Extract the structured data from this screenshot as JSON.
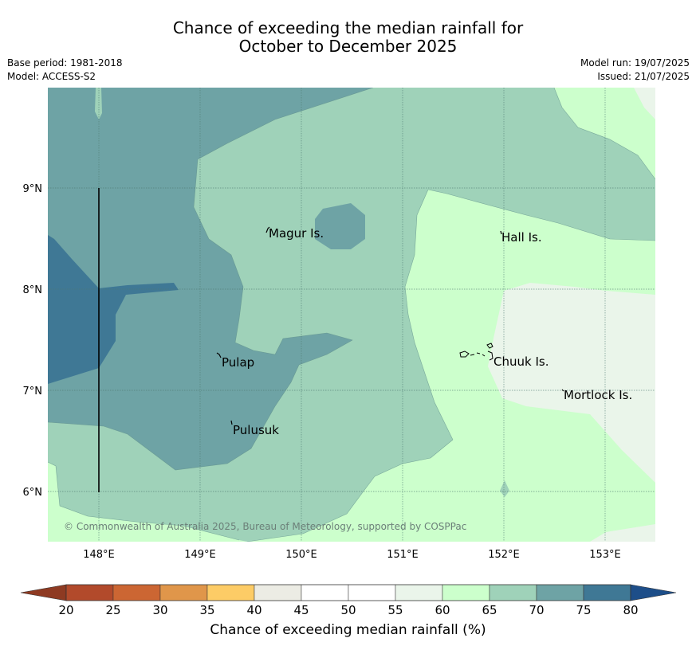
{
  "title": {
    "line1": "Chance of exceeding the median rainfall for",
    "line2": "October to December 2025"
  },
  "meta": {
    "base_period": "Base period: 1981-2018",
    "model": "Model: ACCESS-S2",
    "model_run": "Model run: 19/07/2025",
    "issued": "Issued: 21/07/2025"
  },
  "map": {
    "lon_ticks": [
      "148°E",
      "149°E",
      "150°E",
      "151°E",
      "152°E",
      "153°E"
    ],
    "lat_ticks": [
      "9°N",
      "8°N",
      "7°N",
      "6°N"
    ],
    "places": [
      {
        "name": "Magur Is.",
        "lon": 149.7,
        "lat": 8.56
      },
      {
        "name": "Hall Is.",
        "lon": 151.95,
        "lat": 8.52
      },
      {
        "name": "Pulap",
        "lon": 149.42,
        "lat": 7.28
      },
      {
        "name": "Chuuk Is.",
        "lon": 151.85,
        "lat": 7.29
      },
      {
        "name": "Mortlock Is.",
        "lon": 152.6,
        "lat": 6.96
      },
      {
        "name": "Pulusuk",
        "lon": 149.33,
        "lat": 6.61
      }
    ],
    "copyright": "© Commonwealth of Australia 2025, Bureau of Meteorology, supported by COSPPac",
    "colors": {
      "c40_45": "#ecece4",
      "c55_60": "#eaf5ea",
      "c60_65": "#ccffcc",
      "c65_70": "#9fd2b9",
      "c70_75": "#6ea3a5",
      "c75_80": "#3f7895"
    }
  },
  "colorbar": {
    "title": "Chance of exceeding median rainfall (%)",
    "ticks": [
      "20",
      "25",
      "30",
      "35",
      "40",
      "45",
      "50",
      "55",
      "60",
      "65",
      "70",
      "75",
      "80"
    ],
    "colors": [
      "#b24a2b",
      "#cc6633",
      "#e0964a",
      "#fdcc66",
      "#ecece4",
      "#ffffff",
      "#ffffff",
      "#eaf5ea",
      "#ccffcc",
      "#9fd2b9",
      "#6ea3a5",
      "#3f7895"
    ],
    "under_color": "#8e3a22",
    "over_color": "#1d4e89"
  }
}
